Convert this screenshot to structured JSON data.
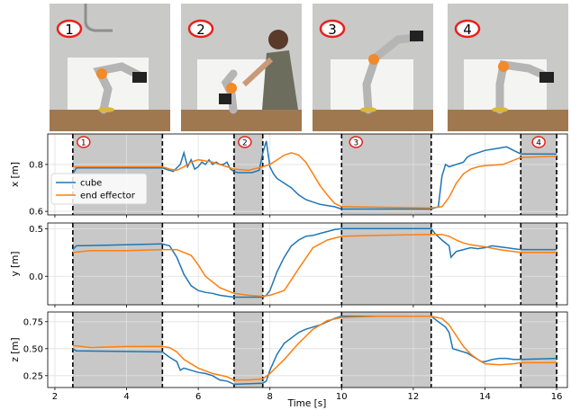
{
  "photos": [
    {
      "label": "1"
    },
    {
      "label": "2"
    },
    {
      "label": "3"
    },
    {
      "label": "4"
    }
  ],
  "colors": {
    "cube": "#1f77b4",
    "end_effector": "#ff7f0e",
    "shade": "#c8c8c8",
    "badge": "#e8211c"
  },
  "chart_data": {
    "type": "line",
    "xlabel": "Time [s]",
    "xlim": [
      1.8,
      16.3
    ],
    "xticks": [
      2,
      4,
      6,
      8,
      10,
      12,
      14,
      16
    ],
    "grid": true,
    "legend": {
      "placement": "top-left of first panel",
      "entries": [
        "cube",
        "end effector"
      ]
    },
    "shaded_intervals": [
      [
        2.5,
        5.0
      ],
      [
        7.0,
        7.8
      ],
      [
        10.0,
        12.5
      ],
      [
        15.0,
        16.0
      ]
    ],
    "phase_labels": [
      {
        "label": "1",
        "x": 2.8
      },
      {
        "label": "2",
        "x": 7.3
      },
      {
        "label": "3",
        "x": 10.4
      },
      {
        "label": "4",
        "x": 15.5
      }
    ],
    "panels": [
      {
        "ylabel": "x [m]",
        "ylim": [
          0.585,
          0.93
        ],
        "yticks": [
          0.6,
          0.8
        ],
        "series": [
          {
            "name": "cube",
            "x": [
              2.5,
              2.6,
              5.0,
              5.1,
              5.3,
              5.5,
              5.6,
              5.7,
              5.8,
              5.9,
              6.0,
              6.1,
              6.2,
              6.3,
              6.4,
              6.5,
              6.6,
              6.7,
              6.8,
              6.9,
              7.0,
              7.1,
              7.5,
              7.6,
              7.7,
              7.8,
              7.9,
              8.0,
              8.1,
              8.2,
              8.4,
              8.6,
              8.8,
              9.0,
              9.2,
              9.4,
              9.6,
              9.8,
              10.0,
              12.5,
              12.7,
              12.8,
              12.9,
              13.0,
              13.2,
              13.4,
              13.5,
              13.6,
              13.8,
              14.0,
              14.2,
              14.4,
              14.6,
              14.8,
              15.0,
              16.0
            ],
            "y": [
              0.76,
              0.785,
              0.785,
              0.78,
              0.77,
              0.8,
              0.85,
              0.79,
              0.82,
              0.78,
              0.79,
              0.81,
              0.8,
              0.82,
              0.8,
              0.81,
              0.8,
              0.8,
              0.81,
              0.78,
              0.77,
              0.765,
              0.765,
              0.77,
              0.775,
              0.85,
              0.9,
              0.79,
              0.76,
              0.74,
              0.72,
              0.7,
              0.67,
              0.65,
              0.64,
              0.63,
              0.625,
              0.62,
              0.61,
              0.61,
              0.62,
              0.75,
              0.8,
              0.79,
              0.8,
              0.81,
              0.83,
              0.84,
              0.85,
              0.86,
              0.865,
              0.87,
              0.875,
              0.86,
              0.845,
              0.845
            ]
          },
          {
            "name": "end effector",
            "x": [
              2.5,
              5.0,
              5.2,
              5.4,
              5.6,
              5.8,
              6.0,
              6.2,
              6.4,
              6.6,
              6.8,
              7.0,
              7.4,
              7.8,
              8.0,
              8.2,
              8.4,
              8.6,
              8.8,
              9.0,
              9.2,
              9.4,
              9.6,
              9.8,
              10.0,
              12.5,
              12.8,
              13.0,
              13.2,
              13.4,
              13.6,
              13.8,
              14.0,
              14.5,
              15.0,
              16.0
            ],
            "y": [
              0.79,
              0.79,
              0.78,
              0.775,
              0.79,
              0.81,
              0.82,
              0.815,
              0.81,
              0.8,
              0.79,
              0.78,
              0.775,
              0.79,
              0.8,
              0.82,
              0.84,
              0.85,
              0.84,
              0.81,
              0.76,
              0.71,
              0.67,
              0.635,
              0.62,
              0.615,
              0.62,
              0.66,
              0.72,
              0.76,
              0.78,
              0.79,
              0.795,
              0.8,
              0.83,
              0.835
            ]
          }
        ]
      },
      {
        "ylabel": "y [m]",
        "ylim": [
          -0.3,
          0.56
        ],
        "yticks": [
          0.0,
          0.5
        ],
        "series": [
          {
            "name": "cube",
            "x": [
              2.5,
              2.6,
              5.0,
              5.2,
              5.4,
              5.6,
              5.8,
              6.0,
              6.2,
              6.4,
              6.6,
              6.8,
              7.0,
              7.8,
              7.9,
              8.0,
              8.2,
              8.4,
              8.6,
              8.8,
              9.0,
              9.2,
              9.4,
              9.6,
              9.8,
              10.0,
              12.5,
              12.6,
              12.8,
              13.0,
              13.05,
              13.2,
              13.4,
              13.6,
              13.8,
              14.0,
              14.2,
              14.4,
              14.6,
              14.8,
              15.0,
              16.0
            ],
            "y": [
              0.28,
              0.32,
              0.34,
              0.32,
              0.2,
              0.02,
              -0.1,
              -0.15,
              -0.17,
              -0.18,
              -0.2,
              -0.21,
              -0.22,
              -0.22,
              -0.2,
              -0.15,
              0.05,
              0.2,
              0.32,
              0.38,
              0.42,
              0.43,
              0.45,
              0.47,
              0.49,
              0.5,
              0.5,
              0.45,
              0.38,
              0.32,
              0.2,
              0.26,
              0.28,
              0.3,
              0.29,
              0.3,
              0.32,
              0.31,
              0.3,
              0.29,
              0.28,
              0.28
            ]
          },
          {
            "name": "end effector",
            "x": [
              2.5,
              3.0,
              4.0,
              5.0,
              5.4,
              5.8,
              6.0,
              6.2,
              6.6,
              7.0,
              7.4,
              7.8,
              8.0,
              8.4,
              8.8,
              9.2,
              9.6,
              10.0,
              11.0,
              12.5,
              12.8,
              13.0,
              13.2,
              13.4,
              13.6,
              14.0,
              14.4,
              14.8,
              15.0,
              16.0
            ],
            "y": [
              0.25,
              0.27,
              0.27,
              0.28,
              0.28,
              0.22,
              0.12,
              0.0,
              -0.12,
              -0.18,
              -0.2,
              -0.21,
              -0.2,
              -0.15,
              0.08,
              0.3,
              0.38,
              0.42,
              0.43,
              0.44,
              0.44,
              0.42,
              0.38,
              0.35,
              0.33,
              0.31,
              0.28,
              0.26,
              0.25,
              0.25
            ]
          }
        ]
      },
      {
        "ylabel": "z [m]",
        "ylim": [
          0.14,
          0.84
        ],
        "yticks": [
          0.25,
          0.5,
          0.75
        ],
        "series": [
          {
            "name": "cube",
            "x": [
              2.5,
              2.6,
              5.0,
              5.2,
              5.4,
              5.5,
              5.6,
              5.8,
              6.0,
              6.2,
              6.4,
              6.6,
              6.8,
              7.0,
              7.8,
              7.9,
              8.0,
              8.2,
              8.4,
              8.6,
              8.8,
              9.0,
              9.2,
              9.4,
              9.6,
              9.8,
              10.0,
              12.5,
              12.7,
              12.9,
              13.0,
              13.1,
              13.3,
              13.5,
              13.7,
              13.9,
              14.0,
              14.2,
              14.4,
              14.6,
              14.8,
              15.0,
              16.0
            ],
            "y": [
              0.5,
              0.48,
              0.47,
              0.42,
              0.38,
              0.3,
              0.32,
              0.3,
              0.28,
              0.27,
              0.25,
              0.21,
              0.2,
              0.17,
              0.18,
              0.2,
              0.3,
              0.45,
              0.55,
              0.6,
              0.65,
              0.68,
              0.7,
              0.72,
              0.75,
              0.78,
              0.8,
              0.8,
              0.75,
              0.7,
              0.65,
              0.5,
              0.48,
              0.46,
              0.42,
              0.38,
              0.38,
              0.4,
              0.41,
              0.41,
              0.4,
              0.4,
              0.41
            ]
          },
          {
            "name": "end effector",
            "x": [
              2.5,
              3.0,
              4.0,
              5.0,
              5.2,
              5.4,
              5.6,
              6.0,
              6.4,
              6.8,
              7.0,
              7.4,
              7.8,
              8.0,
              8.4,
              8.8,
              9.2,
              9.6,
              10.0,
              11.0,
              12.5,
              12.8,
              13.0,
              13.2,
              13.4,
              13.6,
              13.8,
              14.0,
              14.4,
              14.8,
              15.0,
              16.0
            ],
            "y": [
              0.53,
              0.51,
              0.52,
              0.52,
              0.51,
              0.47,
              0.4,
              0.32,
              0.27,
              0.24,
              0.21,
              0.21,
              0.22,
              0.27,
              0.4,
              0.55,
              0.68,
              0.76,
              0.79,
              0.8,
              0.8,
              0.78,
              0.72,
              0.62,
              0.52,
              0.45,
              0.4,
              0.36,
              0.35,
              0.36,
              0.37,
              0.37
            ]
          }
        ]
      }
    ]
  }
}
